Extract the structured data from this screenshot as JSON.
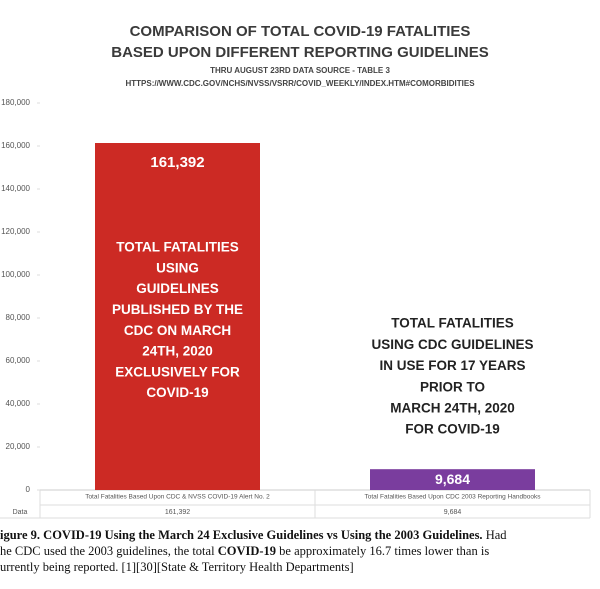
{
  "chart_data": {
    "type": "bar",
    "title": [
      "COMPARISON OF TOTAL COVID-19 FATALITIES",
      "BASED UPON DIFFERENT REPORTING GUIDELINES"
    ],
    "subtitle": [
      "THRU AUGUST 23RD DATA SOURCE - TABLE 3",
      "HTTPS://WWW.CDC.GOV/NCHS/NVSS/VSRR/COVID_WEEKLY/INDEX.HTM#COMORBIDITIES"
    ],
    "categories": [
      "Total Fatalities Based Upon CDC & NVSS COVID-19 Alert No. 2",
      "Total Fatalities Based Upon CDC 2003 Reporting Handbooks"
    ],
    "values": [
      161392,
      9684
    ],
    "value_labels": [
      "161,392",
      "9,684"
    ],
    "colors": [
      "#cc2a24",
      "#7a3d9e"
    ],
    "data_table_label": "Data",
    "annotations": [
      [
        "TOTAL FATALITIES",
        "USING",
        "GUIDELINES",
        "PUBLISHED BY THE",
        "CDC ON MARCH",
        "24TH, 2020",
        "EXCLUSIVELY FOR",
        "COVID-19"
      ],
      [
        "TOTAL FATALITIES",
        "USING CDC GUIDELINES",
        "IN USE FOR 17 YEARS",
        "PRIOR TO",
        "MARCH 24TH, 2020",
        "FOR COVID-19"
      ]
    ],
    "ylim": [
      0,
      180000
    ],
    "yticks": [
      0,
      {
        "value": 20000,
        "label": "20,000"
      },
      {
        "value": 40000,
        "label": "40,000"
      },
      {
        "value": 60000,
        "label": "60,000"
      },
      {
        "value": 80000,
        "label": "80,000"
      },
      {
        "value": 100000,
        "label": "100,000"
      },
      {
        "value": 120000,
        "label": "120,000"
      },
      {
        "value": 140000,
        "label": "140,000"
      },
      {
        "value": 160000,
        "label": "160,000"
      },
      {
        "value": 180000,
        "label": "180,000"
      }
    ]
  },
  "caption": {
    "line1_bold": "igure 9. COVID-19 Using the March 24 Exclusive Guidelines vs Using the 2003 Guidelines.",
    "line1_rest": " Had",
    "line2_start": "he CDC used the 2003 guidelines, the total ",
    "line2_bold": "COVID-19",
    "line2_rest": " be approximately 16.7 times lower than is",
    "line3": "urrently being reported. [1][30][State & Territory Health Departments]"
  }
}
